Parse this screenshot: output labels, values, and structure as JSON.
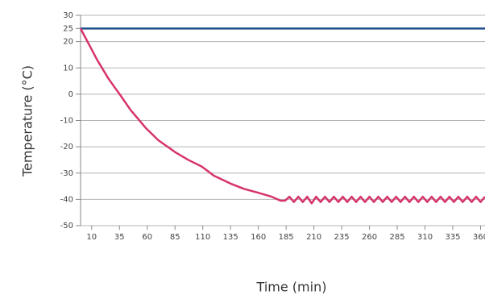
{
  "chart_data": {
    "type": "line",
    "xlabel": "Time (min)",
    "ylabel": "Temperature (°C)",
    "xlim": [
      0,
      364
    ],
    "ylim": [
      -50,
      30
    ],
    "xticks": [
      10,
      35,
      60,
      85,
      110,
      135,
      160,
      185,
      210,
      235,
      260,
      285,
      310,
      335,
      360
    ],
    "yticks": [
      30,
      25,
      20,
      10,
      0,
      -10,
      -20,
      -30,
      -40,
      -50
    ],
    "grid": true,
    "series": [
      {
        "color": "#1f4e8c",
        "x": [
          0,
          364
        ],
        "values": [
          25,
          25
        ]
      },
      {
        "color": "#d6336c",
        "x": [
          0,
          5,
          10,
          15,
          20,
          25,
          30,
          36,
          45,
          59,
          70,
          85,
          97,
          109,
          120,
          135,
          147,
          160,
          172,
          180,
          184,
          188,
          192,
          196,
          200,
          204,
          208,
          212,
          216,
          220,
          224,
          228,
          232,
          236,
          240,
          244,
          248,
          252,
          256,
          260,
          264,
          268,
          272,
          276,
          280,
          284,
          288,
          292,
          296,
          300,
          304,
          308,
          312,
          316,
          320,
          324,
          328,
          332,
          336,
          340,
          344,
          348,
          352,
          356,
          360,
          364
        ],
        "values": [
          25,
          21,
          17,
          13,
          9.5,
          6,
          3,
          -0.5,
          -6,
          -13,
          -17.5,
          -22,
          -25,
          -27.5,
          -31,
          -34,
          -36,
          -37.5,
          -39,
          -40.5,
          -40.5,
          -39,
          -41,
          -39,
          -41,
          -39,
          -41.5,
          -39,
          -41,
          -39,
          -41,
          -39,
          -41,
          -39,
          -41,
          -39,
          -41,
          -39,
          -41,
          -39,
          -41,
          -39,
          -41,
          -39,
          -41,
          -39,
          -41,
          -39,
          -41,
          -39,
          -41,
          -39,
          -41,
          -39,
          -41,
          -39,
          -41,
          -39,
          -41,
          -39,
          -41,
          -39,
          -41,
          -39,
          -41,
          -39
        ]
      }
    ]
  }
}
